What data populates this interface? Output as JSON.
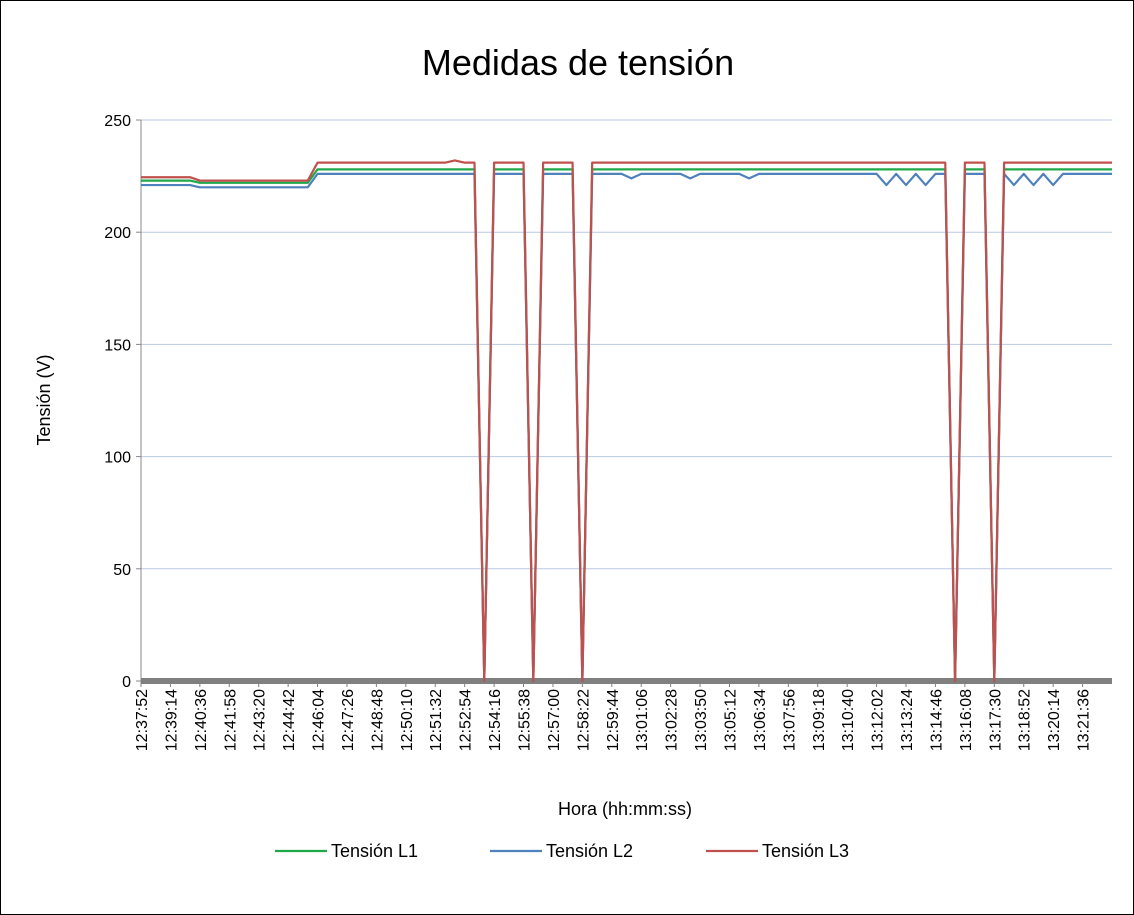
{
  "chart_data": {
    "type": "line",
    "title": "Medidas de tensión",
    "xlabel": "Hora (hh:mm:ss)",
    "ylabel": "Tensión (V)",
    "categories": [
      "12:37:52",
      null,
      null,
      "12:39:14",
      null,
      null,
      "12:40:36",
      null,
      null,
      "12:41:58",
      null,
      null,
      "12:43:20",
      null,
      null,
      "12:44:42",
      null,
      null,
      "12:46:04",
      null,
      null,
      "12:47:26",
      null,
      null,
      "12:48:48",
      null,
      null,
      "12:50:10",
      null,
      null,
      "12:51:32",
      null,
      null,
      "12:52:54",
      null,
      null,
      "12:54:16",
      null,
      null,
      "12:55:38",
      null,
      null,
      "12:57:00",
      null,
      null,
      "12:58:22",
      null,
      null,
      "12:59:44",
      null,
      null,
      "13:01:06",
      null,
      null,
      "13:02:28",
      null,
      null,
      "13:03:50",
      null,
      null,
      "13:05:12",
      null,
      null,
      "13:06:34",
      null,
      null,
      "13:07:56",
      null,
      null,
      "13:09:18",
      null,
      null,
      "13:10:40",
      null,
      null,
      "13:12:02",
      null,
      null,
      "13:13:24",
      null,
      null,
      "13:14:46",
      null,
      null,
      "13:16:08",
      null,
      null,
      "13:17:30",
      null,
      null,
      "13:18:52",
      null,
      null,
      "13:20:14",
      null,
      null,
      "13:21:36",
      null,
      null,
      null
    ],
    "series": [
      {
        "name": "Tensión L1",
        "color": "#1fa84a",
        "values": [
          223,
          223,
          223,
          223,
          223,
          223,
          222,
          222,
          222,
          222,
          222,
          222,
          222,
          222,
          222,
          222,
          222,
          222,
          228,
          228,
          228,
          228,
          228,
          228,
          228,
          228,
          228,
          228,
          228,
          228,
          228,
          228,
          228,
          228,
          228,
          0,
          228,
          228,
          228,
          228,
          0,
          228,
          228,
          228,
          228,
          0,
          228,
          228,
          228,
          228,
          228,
          228,
          228,
          228,
          228,
          228,
          228,
          228,
          228,
          228,
          228,
          228,
          228,
          228,
          228,
          228,
          228,
          228,
          228,
          228,
          228,
          228,
          228,
          228,
          228,
          228,
          228,
          228,
          228,
          228,
          228,
          228,
          228,
          0,
          228,
          228,
          228,
          0,
          228,
          228,
          228,
          228,
          228,
          228,
          228,
          228,
          228,
          228,
          228,
          228
        ]
      },
      {
        "name": "Tensión L2",
        "color": "#4f81bd",
        "values": [
          221,
          221,
          221,
          221,
          221,
          221,
          220,
          220,
          220,
          220,
          220,
          220,
          220,
          220,
          220,
          220,
          220,
          220,
          226,
          226,
          226,
          226,
          226,
          226,
          226,
          226,
          226,
          226,
          226,
          226,
          226,
          226,
          226,
          226,
          226,
          0,
          226,
          226,
          226,
          226,
          0,
          226,
          226,
          226,
          226,
          0,
          226,
          226,
          226,
          226,
          224,
          226,
          226,
          226,
          226,
          226,
          224,
          226,
          226,
          226,
          226,
          226,
          224,
          226,
          226,
          226,
          226,
          226,
          226,
          226,
          226,
          226,
          226,
          226,
          226,
          226,
          221,
          226,
          221,
          226,
          221,
          226,
          226,
          0,
          226,
          226,
          226,
          0,
          226,
          221,
          226,
          221,
          226,
          221,
          226,
          226,
          226,
          226,
          226,
          226
        ]
      },
      {
        "name": "Tensión L3",
        "color": "#c0504d",
        "values": [
          224.5,
          224.5,
          224.5,
          224.5,
          224.5,
          224.5,
          223,
          223,
          223,
          223,
          223,
          223,
          223,
          223,
          223,
          223,
          223,
          223,
          231,
          231,
          231,
          231,
          231,
          231,
          231,
          231,
          231,
          231,
          231,
          231,
          231,
          231,
          232,
          231,
          231,
          0,
          231,
          231,
          231,
          231,
          0,
          231,
          231,
          231,
          231,
          0,
          231,
          231,
          231,
          231,
          231,
          231,
          231,
          231,
          231,
          231,
          231,
          231,
          231,
          231,
          231,
          231,
          231,
          231,
          231,
          231,
          231,
          231,
          231,
          231,
          231,
          231,
          231,
          231,
          231,
          231,
          231,
          231,
          231,
          231,
          231,
          231,
          231,
          0,
          231,
          231,
          231,
          0,
          231,
          231,
          231,
          231,
          231,
          231,
          231,
          231,
          231,
          231,
          231,
          231
        ]
      }
    ],
    "ylim": [
      0,
      250
    ],
    "yticks": [
      0,
      50,
      100,
      150,
      200,
      250
    ],
    "grid": true,
    "legend": "bottom"
  }
}
